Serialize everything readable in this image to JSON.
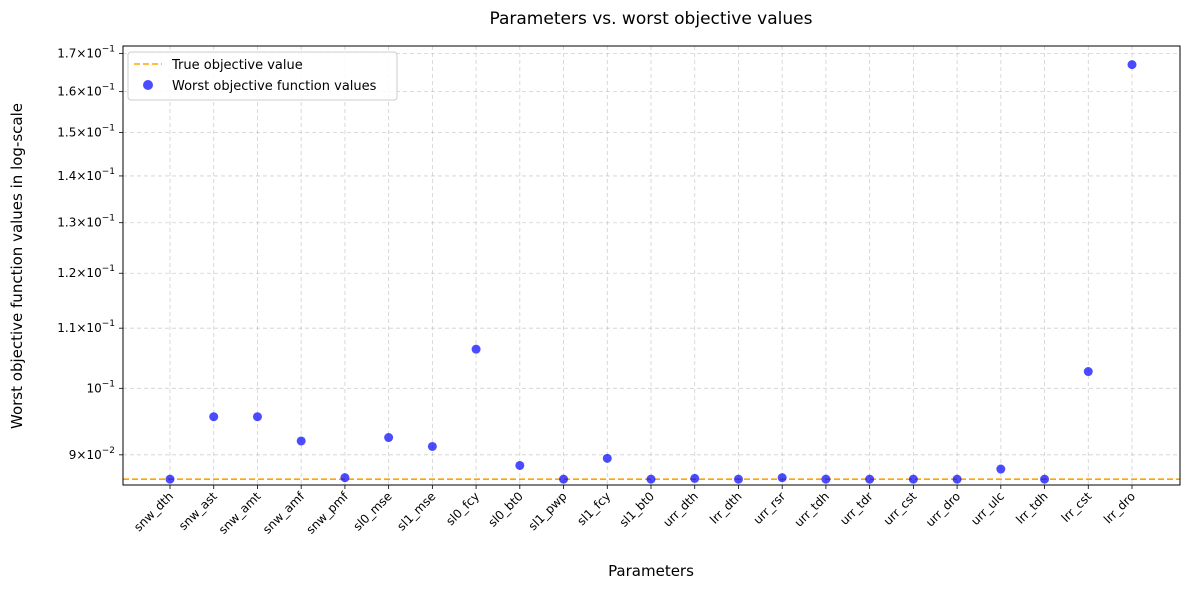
{
  "chart_data": {
    "type": "scatter",
    "title": "Parameters vs. worst objective values",
    "xlabel": "Parameters",
    "ylabel": "Worst objective function values in log-scale",
    "y_scale": "log",
    "ylim": [
      0.0858,
      0.172
    ],
    "grid": true,
    "legend_placement": "top-left",
    "categories": [
      "snw_dth",
      "snw_ast",
      "snw_amt",
      "snw_amf",
      "snw_pmf",
      "sl0_mse",
      "sl1_mse",
      "sl0_fcy",
      "sl0_bt0",
      "sl1_pwp",
      "sl1_fcy",
      "sl1_bt0",
      "urr_dth",
      "lrr_dth",
      "urr_rsr",
      "urr_tdh",
      "urr_tdr",
      "urr_cst",
      "urr_dro",
      "urr_ulc",
      "lrr_tdh",
      "lrr_cst",
      "lrr_dro"
    ],
    "y_ticks": [
      {
        "value": 0.09,
        "mant": "9",
        "times": "×",
        "base": "10",
        "exp": "−2"
      },
      {
        "value": 0.1,
        "mant": "",
        "times": "",
        "base": "10",
        "exp": "−1"
      },
      {
        "value": 0.11,
        "mant": "1.1",
        "times": "×",
        "base": "10",
        "exp": "−1"
      },
      {
        "value": 0.12,
        "mant": "1.2",
        "times": "×",
        "base": "10",
        "exp": "−1"
      },
      {
        "value": 0.13,
        "mant": "1.3",
        "times": "×",
        "base": "10",
        "exp": "−1"
      },
      {
        "value": 0.14,
        "mant": "1.4",
        "times": "×",
        "base": "10",
        "exp": "−1"
      },
      {
        "value": 0.15,
        "mant": "1.5",
        "times": "×",
        "base": "10",
        "exp": "−1"
      },
      {
        "value": 0.16,
        "mant": "1.6",
        "times": "×",
        "base": "10",
        "exp": "−1"
      },
      {
        "value": 0.17,
        "mant": "1.7",
        "times": "×",
        "base": "10",
        "exp": "−1"
      }
    ],
    "series": [
      {
        "name": "Worst objective function values",
        "kind": "scatter",
        "color": "#0000ff",
        "values": [
          0.0866,
          0.0956,
          0.0956,
          0.092,
          0.0868,
          0.0925,
          0.0912,
          0.1064,
          0.0885,
          0.0866,
          0.0895,
          0.0866,
          0.0867,
          0.0866,
          0.0868,
          0.0866,
          0.0866,
          0.0866,
          0.0866,
          0.088,
          0.0866,
          0.1027,
          0.167
        ]
      },
      {
        "name": "True objective value",
        "kind": "hline",
        "color": "#ffa500",
        "value": 0.0866
      }
    ]
  }
}
